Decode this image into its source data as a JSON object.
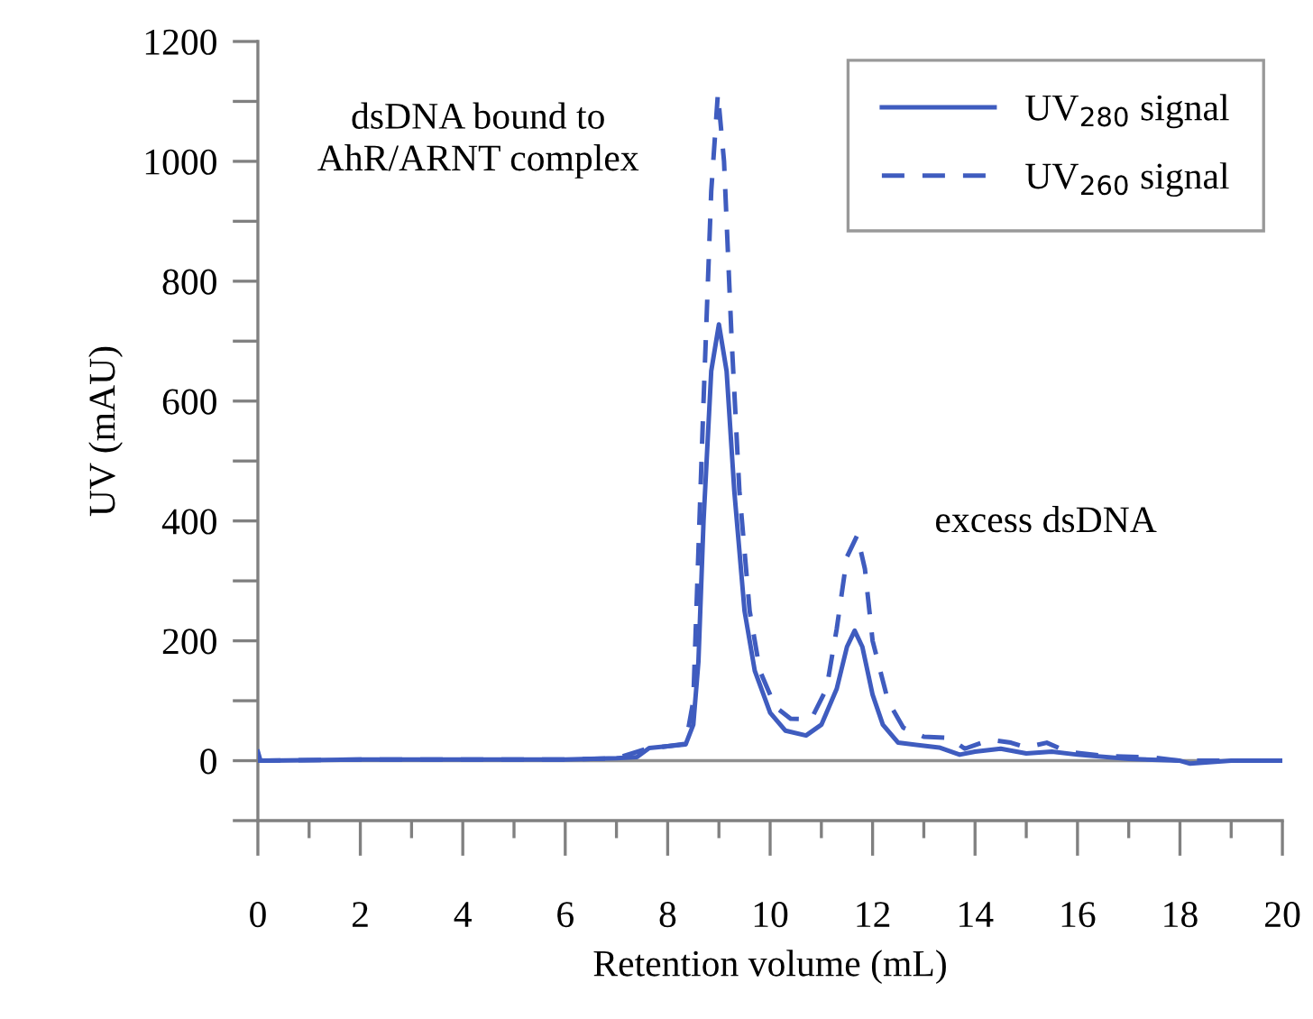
{
  "chart_data": {
    "type": "line",
    "xlabel": "Retention volume (mL)",
    "ylabel": "UV (mAU)",
    "xlim": [
      0,
      20
    ],
    "ylim": [
      -100,
      1200
    ],
    "xticks": [
      0,
      {
        "value": 1,
        "label": null
      },
      2,
      {
        "value": 3,
        "label": null
      },
      4,
      {
        "value": 5,
        "label": null
      },
      6,
      {
        "value": 7,
        "label": null
      },
      8,
      {
        "value": 9,
        "label": null
      },
      10,
      {
        "value": 11,
        "label": null
      },
      12,
      {
        "value": 13,
        "label": null
      },
      14,
      {
        "value": 15,
        "label": null
      },
      16,
      {
        "value": 17,
        "label": null
      },
      18,
      {
        "value": 19,
        "label": null
      },
      20
    ],
    "yticks": [
      {
        "value": -100,
        "label": null
      },
      0,
      {
        "value": 100,
        "label": null
      },
      200,
      {
        "value": 300,
        "label": null
      },
      400,
      {
        "value": 500,
        "label": null
      },
      600,
      {
        "value": 700,
        "label": null
      },
      800,
      {
        "value": 900,
        "label": null
      },
      1000,
      {
        "value": 1100,
        "label": null
      },
      1200
    ],
    "grid": false,
    "legend": "top right",
    "ref_lines": [
      {
        "axis": "y",
        "value": 0,
        "color": "#909090"
      }
    ],
    "annotations": [
      "dsDNA bound to\nAhR/ARNT complex",
      "excess dsDNA"
    ],
    "series": [
      {
        "name": "UV$_{280}$ signal",
        "color": "#3f5cbf",
        "line_style": "solid",
        "x": [
          0,
          0.05,
          0.2,
          2,
          4,
          6,
          7,
          7.4,
          7.64,
          8.0,
          8.35,
          8.5,
          8.6,
          8.7,
          8.85,
          9.0,
          9.15,
          9.3,
          9.5,
          9.7,
          10.0,
          10.3,
          10.7,
          11.0,
          11.3,
          11.5,
          11.65,
          11.8,
          12.0,
          12.2,
          12.5,
          13.0,
          13.3,
          13.7,
          14.0,
          14.5,
          15.0,
          15.5,
          16.0,
          17.0,
          18.0,
          18.2,
          19.0,
          20.0
        ],
        "values": [
          15,
          0,
          0,
          2,
          2,
          2,
          4,
          6,
          21,
          24,
          27,
          60,
          165,
          400,
          650,
          728,
          650,
          450,
          250,
          150,
          80,
          50,
          42,
          60,
          120,
          190,
          217,
          190,
          110,
          60,
          30,
          25,
          22,
          10,
          15,
          20,
          12,
          15,
          10,
          3,
          0,
          -5,
          0,
          0
        ]
      },
      {
        "name": "UV$_{260}$ signal",
        "color": "#3f5cbf",
        "line_style": "dashed",
        "x": [
          0,
          2,
          4,
          6,
          7,
          7.6,
          8.0,
          8.35,
          8.5,
          8.7,
          8.85,
          8.98,
          9.1,
          9.25,
          9.4,
          9.6,
          9.8,
          10.1,
          10.4,
          10.8,
          11.1,
          11.3,
          11.5,
          11.7,
          11.85,
          12.0,
          12.3,
          12.6,
          13.0,
          13.5,
          13.8,
          14.3,
          14.7,
          15.0,
          15.4,
          15.8,
          16.5,
          17.5,
          18.0,
          19.0,
          20.0
        ],
        "values": [
          0,
          2,
          2,
          2,
          4,
          20,
          24,
          28,
          100,
          600,
          950,
          1113,
          1000,
          700,
          450,
          250,
          150,
          90,
          70,
          69,
          120,
          220,
          340,
          376,
          320,
          200,
          100,
          55,
          40,
          38,
          20,
          35,
          30,
          22,
          30,
          15,
          8,
          5,
          0,
          0,
          0
        ]
      }
    ]
  }
}
